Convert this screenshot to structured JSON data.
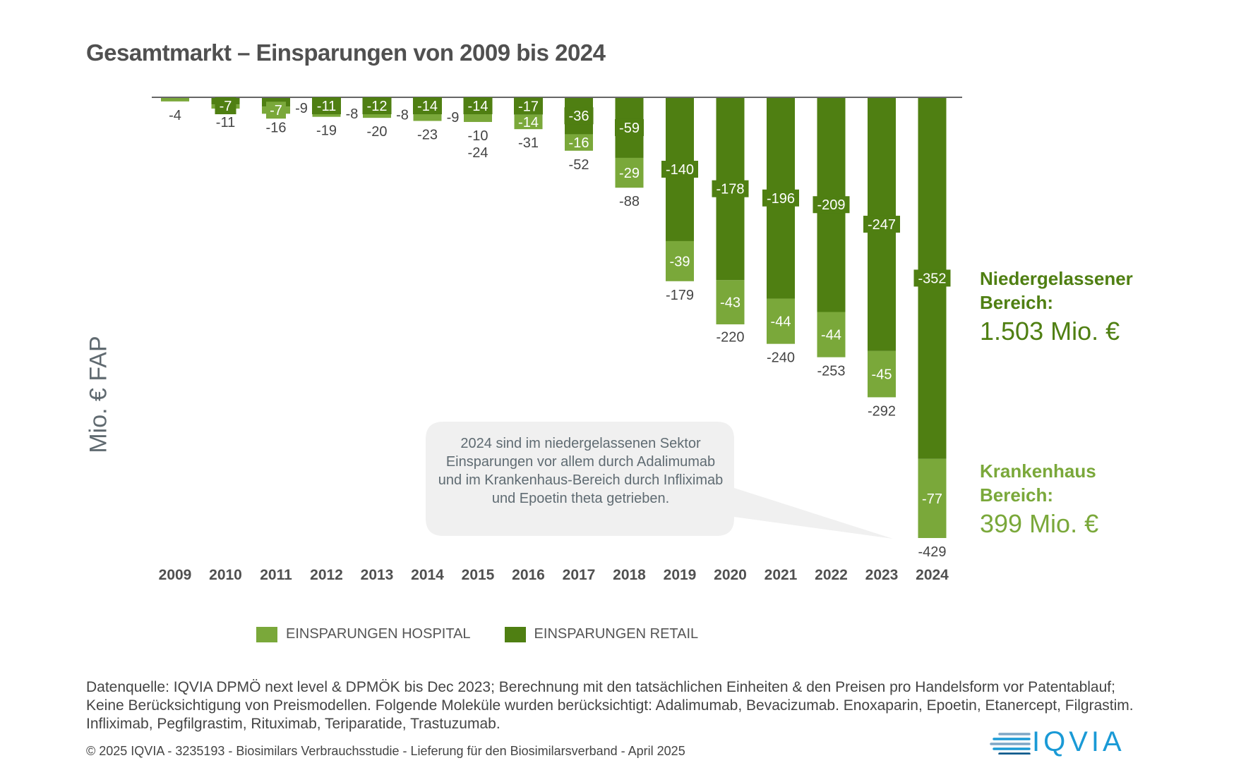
{
  "header": {
    "title": "Gesamtmarkt – Einsparungen von 2009 bis 2024"
  },
  "colors": {
    "hospital": "#7aa83a",
    "retail": "#4f7f12",
    "axis": "#666666",
    "text": "#555555",
    "callout_bg": "#f0f0f0"
  },
  "chart_data": {
    "type": "bar",
    "stacked": true,
    "title": "Gesamtmarkt – Einsparungen von 2009 bis 2024",
    "xlabel": "",
    "ylabel": "Mio. € FAP",
    "categories": [
      "2009",
      "2010",
      "2011",
      "2012",
      "2013",
      "2014",
      "2015",
      "2016",
      "2017",
      "2018",
      "2019",
      "2020",
      "2021",
      "2022",
      "2023",
      "2024"
    ],
    "series": [
      {
        "name": "EINSPARUNGEN RETAIL",
        "values": [
          0,
          -7,
          -9,
          -11,
          -12,
          -14,
          -14,
          -17,
          -36,
          -59,
          -140,
          -178,
          -196,
          -209,
          -247,
          -352
        ]
      },
      {
        "name": "EINSPARUNGEN HOSPITAL",
        "values": [
          -4,
          -4,
          -7,
          -8,
          -8,
          -9,
          -10,
          -14,
          -16,
          -29,
          -39,
          -43,
          -44,
          -44,
          -45,
          -77
        ]
      }
    ],
    "totals": [
      -4,
      -11,
      -16,
      -19,
      -20,
      -23,
      -24,
      -31,
      -52,
      -88,
      -179,
      -220,
      -240,
      -253,
      -292,
      -429
    ],
    "retail_labels": [
      "",
      "-7",
      "-9",
      "-11",
      "-12",
      "-14",
      "-14",
      "-17",
      "-36",
      "-59",
      "-140",
      "-178",
      "-196",
      "-209",
      "-247",
      "-352"
    ],
    "hospital_labels": [
      "",
      "",
      "-7",
      "-8",
      "-8",
      "-9",
      "-10",
      "-14",
      "-16",
      "-29",
      "-39",
      "-43",
      "-44",
      "-44",
      "-45",
      "-77"
    ],
    "total_labels": [
      "-4",
      "-11",
      "-16",
      "-19",
      "-20",
      "-23",
      "-24",
      "-31",
      "-52",
      "-88",
      "-179",
      "-220",
      "-240",
      "-253",
      "-292",
      "-429"
    ],
    "ylim": [
      -429,
      0
    ],
    "grid": false,
    "legend": "bottom"
  },
  "legend": {
    "items": [
      {
        "label": "EINSPARUNGEN HOSPITAL"
      },
      {
        "label": "EINSPARUNGEN RETAIL"
      }
    ]
  },
  "annotations": {
    "retail_head": "Niedergelassener Bereich:",
    "retail_value": "1.503 Mio. €",
    "hospital_head": "Krankenhaus Bereich:",
    "hospital_value": "399 Mio. €",
    "callout": "2024 sind im niedergelassenen Sektor Einsparungen vor allem durch Adalimumab und im Krankenhaus-Bereich durch Infliximab und Epoetin theta getrieben."
  },
  "footer": {
    "source": "Datenquelle: IQVIA DPMÖ next level & DPMÖK bis Dec 2023; Berechnung mit den tatsächlichen Einheiten & den Preisen pro Handelsform vor Patentablauf; Keine Berücksichtigung von Preismodellen. Folgende Moleküle wurden berücksichtigt: Adalimumab, Bevacizumab. Enoxaparin, Epoetin, Etanercept, Filgrastim. Infliximab, Pegfilgrastim, Rituximab, Teriparatide, Trastuzumab.",
    "copyright": "© 2025 IQVIA - 3235193 - Biosimilars Verbrauchsstudie - Lieferung für den Biosimilarsverband - April 2025",
    "logo": "IQVIA"
  }
}
